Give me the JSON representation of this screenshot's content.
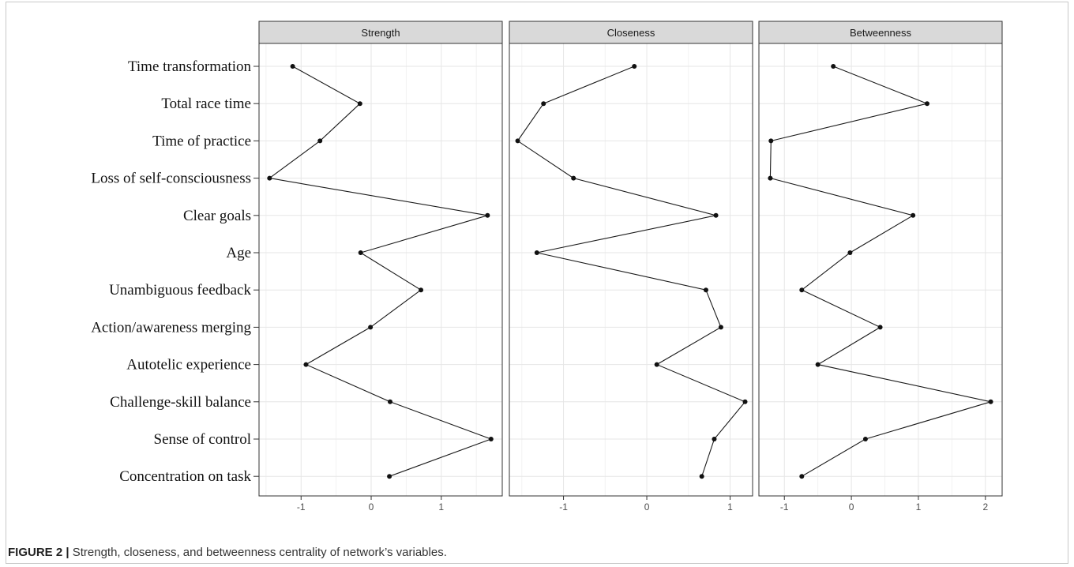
{
  "caption": {
    "label": "FIGURE 2 |",
    "text": "Strength, closeness, and betweenness centrality of network’s variables."
  },
  "chart_data": {
    "type": "line",
    "categories": [
      "Time transformation",
      "Total race time",
      "Time of practice",
      "Loss of self-consciousness",
      "Clear goals",
      "Age",
      "Unambiguous feedback",
      "Action/awareness merging",
      "Autotelic experience",
      "Challenge-skill balance",
      "Sense of control",
      "Concentration on task"
    ],
    "facets": [
      {
        "title": "Strength",
        "ticks": [
          -1,
          0,
          1
        ],
        "xlim": [
          -1.6,
          1.87
        ],
        "values": [
          -1.12,
          -0.16,
          -0.73,
          -1.45,
          1.66,
          -0.15,
          0.71,
          -0.01,
          -0.93,
          0.27,
          1.71,
          0.26
        ]
      },
      {
        "title": "Closeness",
        "ticks": [
          -1,
          0,
          1
        ],
        "xlim": [
          -1.65,
          1.27
        ],
        "values": [
          -0.15,
          -1.24,
          -1.55,
          -0.88,
          0.83,
          -1.32,
          0.71,
          0.89,
          0.12,
          1.18,
          0.81,
          0.66
        ]
      },
      {
        "title": "Betweenness",
        "ticks": [
          -1,
          0,
          1,
          2
        ],
        "xlim": [
          -1.38,
          2.25
        ],
        "values": [
          -0.27,
          1.13,
          -1.2,
          -1.21,
          0.92,
          -0.02,
          -0.74,
          0.43,
          -0.5,
          2.08,
          0.21,
          -0.74
        ]
      }
    ],
    "grid": true
  }
}
